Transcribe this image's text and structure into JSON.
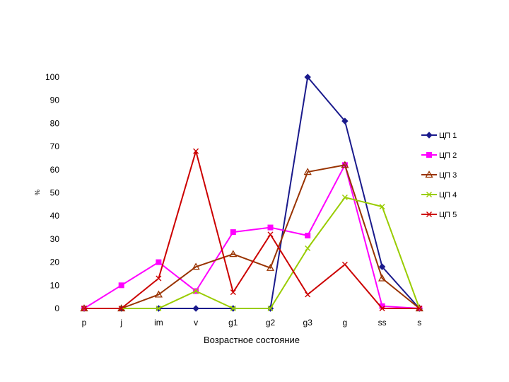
{
  "chart_data": {
    "type": "line",
    "title": "",
    "xlabel": "Возрастное состояние",
    "ylabel": "%",
    "ylim": [
      0,
      100
    ],
    "yticks": [
      "0",
      "10",
      "20",
      "30",
      "40",
      "50",
      "60",
      "70",
      "80",
      "90",
      "100"
    ],
    "categories": [
      "p",
      "j",
      "im",
      "v",
      "g1",
      "g2",
      "g3",
      "g",
      "ss",
      "s"
    ],
    "grid": false,
    "legend_position": "right",
    "series": [
      {
        "name": "ЦП 1",
        "color": "#1a1a8c",
        "marker": "diamond",
        "values": [
          0,
          0,
          0,
          0,
          0,
          0,
          100,
          81,
          18,
          0
        ]
      },
      {
        "name": "ЦП 2",
        "color": "#ff00ff",
        "marker": "square",
        "values": [
          0,
          10,
          20,
          7.5,
          33,
          35,
          31.5,
          62,
          1,
          0
        ]
      },
      {
        "name": "ЦП 3",
        "color": "#993300",
        "marker": "triangle",
        "values": [
          0,
          0,
          6,
          18,
          23.5,
          17.5,
          59,
          62,
          13,
          0
        ]
      },
      {
        "name": "ЦП 4",
        "color": "#99cc00",
        "marker": "x",
        "values": [
          0,
          0,
          0,
          7.5,
          0,
          0,
          26,
          48,
          44,
          0
        ]
      },
      {
        "name": "ЦП 5",
        "color": "#cc0000",
        "marker": "x",
        "values": [
          0,
          0,
          13,
          68,
          7,
          32,
          6,
          19,
          0,
          0
        ]
      }
    ]
  }
}
